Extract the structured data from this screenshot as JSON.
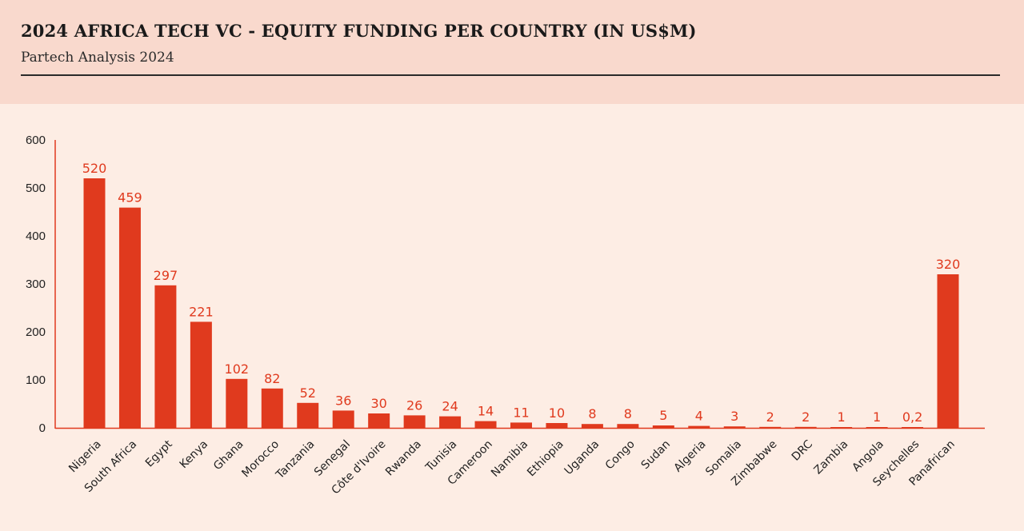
{
  "header": {
    "title": "2024 AFRICA TECH VC - EQUITY FUNDING PER COUNTRY (IN US$M)",
    "subtitle": "Partech Analysis 2024"
  },
  "colors": {
    "bar": "#e03a1e",
    "axis": "#e03a1e",
    "label": "#e03a1e",
    "header_bg": "#f9d9cd",
    "page_bg": "#fdede4"
  },
  "chart_data": {
    "type": "bar",
    "title": "2024 AFRICA TECH VC - EQUITY FUNDING PER COUNTRY (IN US$M)",
    "xlabel": "",
    "ylabel": "",
    "ylim": [
      0,
      600
    ],
    "yticks": [
      0,
      100,
      200,
      300,
      400,
      500,
      600
    ],
    "grid": false,
    "categories": [
      "Nigeria",
      "South Africa",
      "Egypt",
      "Kenya",
      "Ghana",
      "Morocco",
      "Tanzania",
      "Senegal",
      "Côte d'Ivoire",
      "Rwanda",
      "Tunisia",
      "Cameroon",
      "Namibia",
      "Ethiopia",
      "Uganda",
      "Congo",
      "Sudan",
      "Algeria",
      "Somalia",
      "Zimbabwe",
      "DRC",
      "Zambia",
      "Angola",
      "Seychelles",
      "Panafrican"
    ],
    "values": [
      520,
      459,
      297,
      221,
      102,
      82,
      52,
      36,
      30,
      26,
      24,
      14,
      11,
      10,
      8,
      8,
      5,
      4,
      3,
      2,
      2,
      1,
      1,
      0.2,
      320
    ],
    "value_labels": [
      "520",
      "459",
      "297",
      "221",
      "102",
      "82",
      "52",
      "36",
      "30",
      "26",
      "24",
      "14",
      "11",
      "10",
      "8",
      "8",
      "5",
      "4",
      "3",
      "2",
      "2",
      "1",
      "1",
      "0,2",
      "320"
    ]
  }
}
